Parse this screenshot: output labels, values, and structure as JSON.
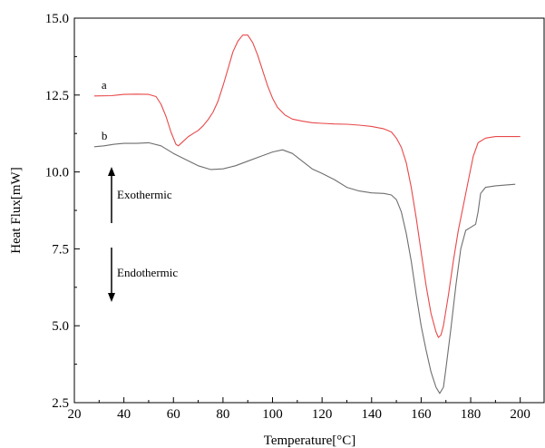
{
  "chart_data": {
    "type": "line",
    "xlabel": "Temperature[°C]",
    "ylabel": "Heat Flux[mW]",
    "xlim": [
      20,
      210
    ],
    "ylim": [
      2.5,
      15.0
    ],
    "x_ticks": [
      "20",
      "40",
      "60",
      "80",
      "100",
      "120",
      "140",
      "160",
      "180",
      "200"
    ],
    "y_ticks": [
      "2.5",
      "5.0",
      "7.5",
      "10.0",
      "12.5",
      "15.0"
    ],
    "grid": false,
    "legend": "none",
    "annotations": {
      "exo": "Exothermic",
      "endo": "Endothermic"
    },
    "series": [
      {
        "name": "a",
        "color": "#e8484a",
        "points": [
          [
            28,
            12.47
          ],
          [
            35,
            12.48
          ],
          [
            40,
            12.52
          ],
          [
            45,
            12.53
          ],
          [
            50,
            12.52
          ],
          [
            53,
            12.45
          ],
          [
            55,
            12.2
          ],
          [
            57,
            11.8
          ],
          [
            59,
            11.3
          ],
          [
            61,
            10.9
          ],
          [
            62,
            10.85
          ],
          [
            64,
            11.0
          ],
          [
            66,
            11.15
          ],
          [
            68,
            11.25
          ],
          [
            70,
            11.35
          ],
          [
            72,
            11.5
          ],
          [
            74,
            11.7
          ],
          [
            76,
            11.95
          ],
          [
            78,
            12.3
          ],
          [
            80,
            12.8
          ],
          [
            82,
            13.35
          ],
          [
            84,
            13.9
          ],
          [
            86,
            14.25
          ],
          [
            88,
            14.45
          ],
          [
            90,
            14.45
          ],
          [
            92,
            14.2
          ],
          [
            94,
            13.8
          ],
          [
            96,
            13.3
          ],
          [
            98,
            12.8
          ],
          [
            100,
            12.4
          ],
          [
            102,
            12.1
          ],
          [
            105,
            11.85
          ],
          [
            108,
            11.72
          ],
          [
            112,
            11.65
          ],
          [
            116,
            11.6
          ],
          [
            120,
            11.58
          ],
          [
            125,
            11.56
          ],
          [
            130,
            11.55
          ],
          [
            135,
            11.52
          ],
          [
            140,
            11.48
          ],
          [
            145,
            11.4
          ],
          [
            148,
            11.3
          ],
          [
            150,
            11.1
          ],
          [
            152,
            10.8
          ],
          [
            154,
            10.3
          ],
          [
            156,
            9.5
          ],
          [
            158,
            8.5
          ],
          [
            160,
            7.4
          ],
          [
            162,
            6.3
          ],
          [
            164,
            5.4
          ],
          [
            166,
            4.8
          ],
          [
            167,
            4.62
          ],
          [
            168,
            4.7
          ],
          [
            169,
            5.0
          ],
          [
            171,
            6.0
          ],
          [
            173,
            7.1
          ],
          [
            175,
            8.1
          ],
          [
            177,
            8.9
          ],
          [
            179,
            9.7
          ],
          [
            181,
            10.5
          ],
          [
            183,
            10.95
          ],
          [
            186,
            11.1
          ],
          [
            190,
            11.15
          ],
          [
            195,
            11.15
          ],
          [
            200,
            11.15
          ]
        ]
      },
      {
        "name": "b",
        "color": "#6e6e6e",
        "points": [
          [
            28,
            10.82
          ],
          [
            32,
            10.85
          ],
          [
            36,
            10.9
          ],
          [
            40,
            10.93
          ],
          [
            45,
            10.93
          ],
          [
            50,
            10.95
          ],
          [
            55,
            10.85
          ],
          [
            60,
            10.6
          ],
          [
            65,
            10.4
          ],
          [
            70,
            10.2
          ],
          [
            75,
            10.08
          ],
          [
            80,
            10.1
          ],
          [
            85,
            10.2
          ],
          [
            90,
            10.35
          ],
          [
            95,
            10.5
          ],
          [
            100,
            10.65
          ],
          [
            104,
            10.72
          ],
          [
            108,
            10.6
          ],
          [
            112,
            10.35
          ],
          [
            116,
            10.1
          ],
          [
            120,
            9.95
          ],
          [
            125,
            9.75
          ],
          [
            130,
            9.5
          ],
          [
            135,
            9.38
          ],
          [
            140,
            9.32
          ],
          [
            145,
            9.3
          ],
          [
            148,
            9.25
          ],
          [
            150,
            9.1
          ],
          [
            152,
            8.7
          ],
          [
            154,
            8.0
          ],
          [
            156,
            7.1
          ],
          [
            158,
            6.0
          ],
          [
            160,
            5.0
          ],
          [
            162,
            4.2
          ],
          [
            164,
            3.5
          ],
          [
            166,
            3.0
          ],
          [
            167.5,
            2.8
          ],
          [
            169,
            3.0
          ],
          [
            170,
            3.6
          ],
          [
            172,
            4.9
          ],
          [
            174,
            6.3
          ],
          [
            176,
            7.5
          ],
          [
            178,
            8.1
          ],
          [
            180,
            8.2
          ],
          [
            182,
            8.3
          ],
          [
            183,
            8.7
          ],
          [
            184,
            9.3
          ],
          [
            186,
            9.5
          ],
          [
            190,
            9.55
          ],
          [
            195,
            9.58
          ],
          [
            198,
            9.6
          ]
        ]
      }
    ]
  }
}
